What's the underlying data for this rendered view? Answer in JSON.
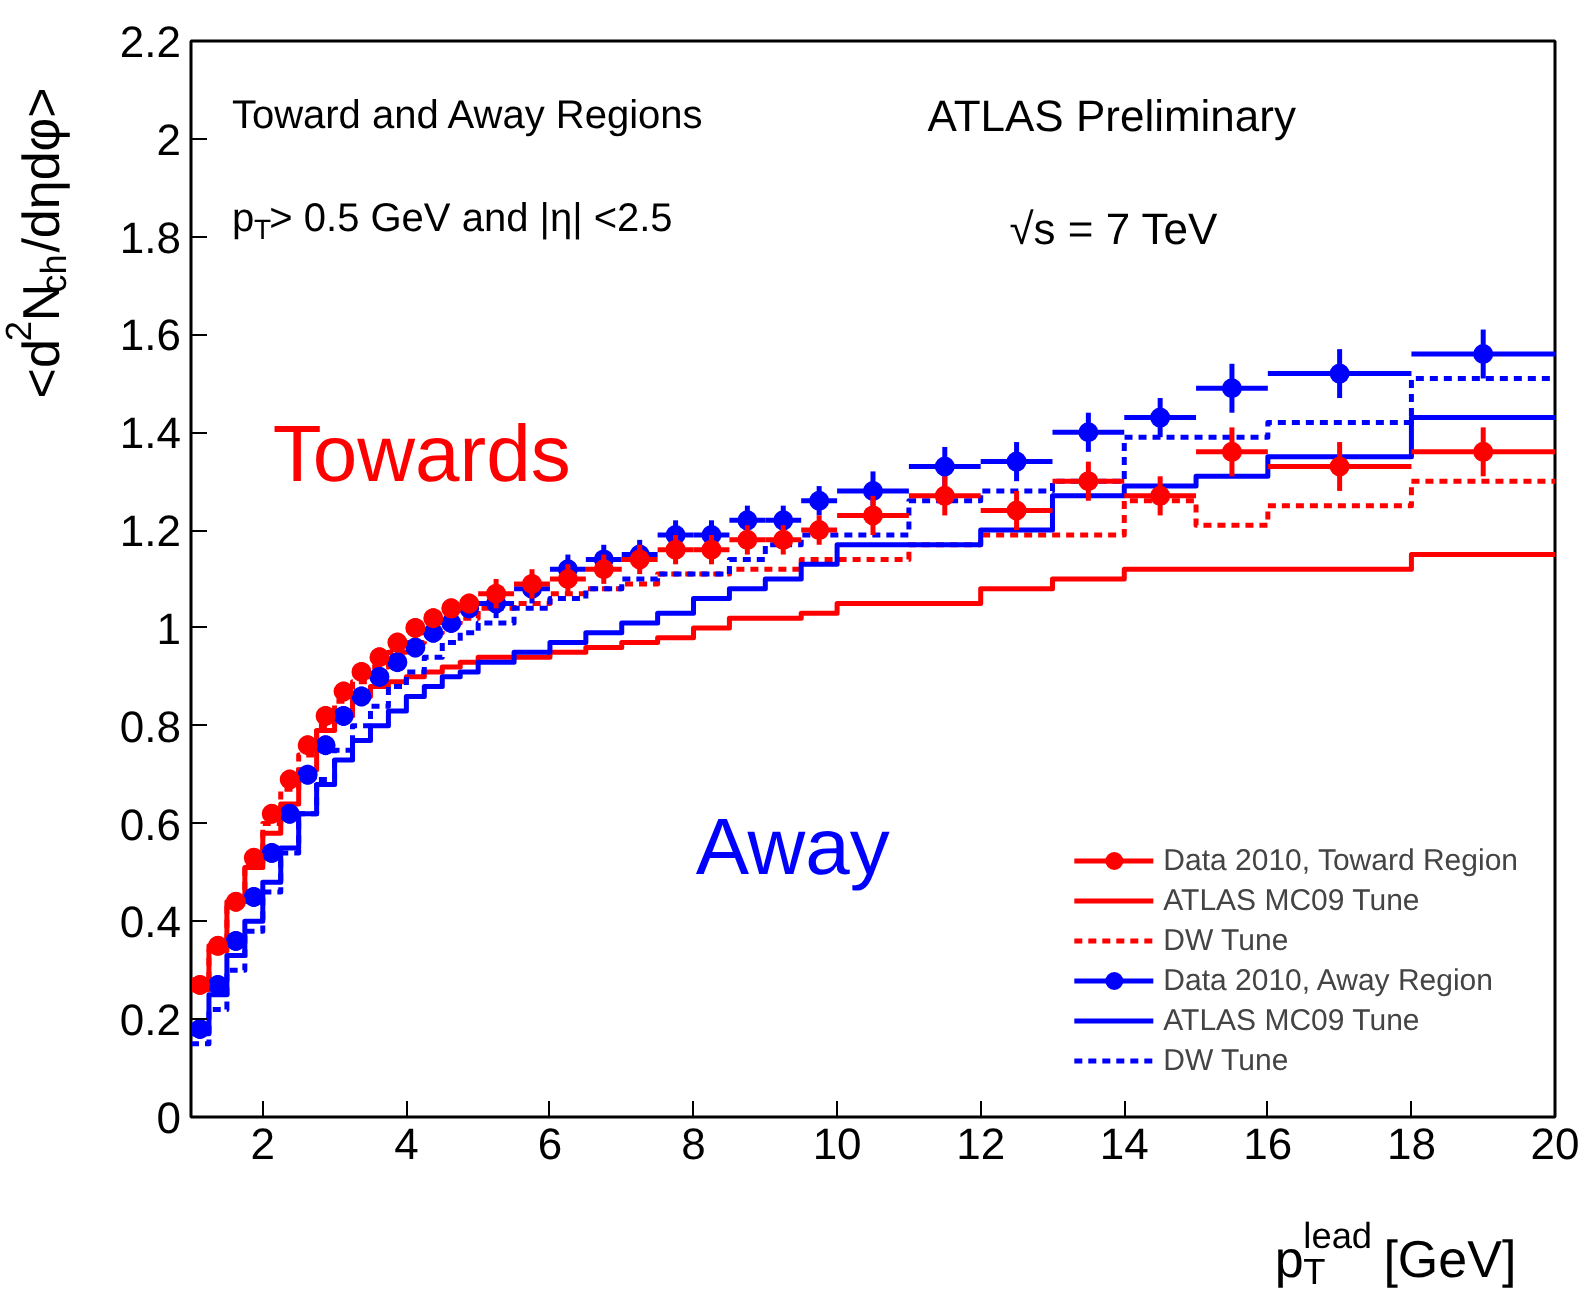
{
  "chart_data": {
    "type": "scatter",
    "xlabel": "p$_{T}$$^{lead}$ [GeV]",
    "ylabel": "<d$^{2}$N$_{ch}$/dηdφ>",
    "annotations": [
      "Toward and Away Regions",
      "p$_{T}$> 0.5  GeV and |η| <2.5",
      "ATLAS Preliminary",
      "√s = 7 TeV",
      "Towards",
      "Away"
    ],
    "xlim": [
      1,
      20
    ],
    "ylim": [
      0,
      2.2
    ],
    "xticks": [
      2,
      4,
      6,
      8,
      10,
      12,
      14,
      16,
      18,
      20
    ],
    "yticks": [
      0,
      0.2,
      0.4,
      0.6,
      0.8,
      1,
      1.2,
      1.4,
      1.6,
      1.8,
      2,
      2.2
    ],
    "grid": false,
    "legend": "bottom right",
    "x": [
      1.125,
      1.375,
      1.625,
      1.875,
      2.125,
      2.375,
      2.625,
      2.875,
      3.125,
      3.375,
      3.625,
      3.875,
      4.125,
      4.375,
      4.625,
      4.875,
      5.25,
      5.75,
      6.25,
      6.75,
      7.25,
      7.75,
      8.25,
      8.75,
      9.25,
      9.75,
      10.5,
      11.5,
      12.5,
      13.5,
      14.5,
      15.5,
      17,
      19
    ],
    "series": [
      {
        "name": "Data 2010, Toward Region",
        "marker": "circle",
        "color": "#ff0000",
        "values": [
          0.27,
          0.35,
          0.44,
          0.53,
          0.62,
          0.69,
          0.76,
          0.82,
          0.87,
          0.91,
          0.94,
          0.97,
          1.0,
          1.02,
          1.04,
          1.05,
          1.07,
          1.09,
          1.1,
          1.12,
          1.14,
          1.16,
          1.16,
          1.18,
          1.18,
          1.2,
          1.23,
          1.27,
          1.24,
          1.3,
          1.27,
          1.36,
          1.33,
          1.36
        ],
        "errors": [
          0.02,
          0.02,
          0.02,
          0.02,
          0.02,
          0.02,
          0.02,
          0.02,
          0.02,
          0.02,
          0.02,
          0.02,
          0.02,
          0.02,
          0.02,
          0.02,
          0.03,
          0.03,
          0.03,
          0.03,
          0.03,
          0.03,
          0.03,
          0.03,
          0.03,
          0.03,
          0.04,
          0.04,
          0.04,
          0.04,
          0.04,
          0.05,
          0.05,
          0.05
        ],
        "xerrors": [
          0.125,
          0.125,
          0.125,
          0.125,
          0.125,
          0.125,
          0.125,
          0.125,
          0.125,
          0.125,
          0.125,
          0.125,
          0.125,
          0.125,
          0.125,
          0.125,
          0.25,
          0.25,
          0.25,
          0.25,
          0.25,
          0.25,
          0.25,
          0.25,
          0.25,
          0.25,
          0.5,
          0.5,
          0.5,
          0.5,
          0.5,
          0.5,
          1,
          1
        ]
      },
      {
        "name": "ATLAS MC09 Tune",
        "type": "step",
        "marker": "none",
        "line_style": "solid",
        "color": "#ff0000",
        "x": [
          1,
          1.25,
          1.5,
          1.75,
          2,
          2.25,
          2.5,
          2.75,
          3,
          3.25,
          3.5,
          3.75,
          4,
          4.25,
          4.5,
          4.75,
          5,
          5.5,
          6,
          6.5,
          7,
          7.5,
          8,
          8.5,
          9,
          9.5,
          10,
          11,
          12,
          13,
          14,
          15,
          16,
          18,
          20
        ],
        "values": [
          0.28,
          0.35,
          0.44,
          0.51,
          0.58,
          0.64,
          0.71,
          0.79,
          0.82,
          0.86,
          0.88,
          0.89,
          0.9,
          0.91,
          0.92,
          0.93,
          0.94,
          0.94,
          0.95,
          0.96,
          0.97,
          0.98,
          1.0,
          1.02,
          1.02,
          1.03,
          1.05,
          1.05,
          1.08,
          1.1,
          1.12,
          1.12,
          1.12,
          1.15,
          1.15
        ]
      },
      {
        "name": "DW Tune",
        "type": "step",
        "marker": "none",
        "line_style": "dashed",
        "color": "#ff0000",
        "x": [
          1,
          1.25,
          1.5,
          1.75,
          2,
          2.25,
          2.5,
          2.75,
          3,
          3.25,
          3.5,
          3.75,
          4,
          4.25,
          4.5,
          4.75,
          5,
          5.5,
          6,
          6.5,
          7,
          7.5,
          8,
          8.5,
          9,
          9.5,
          10,
          11,
          12,
          13,
          14,
          15,
          16,
          18,
          20
        ],
        "values": [
          0.26,
          0.34,
          0.43,
          0.52,
          0.6,
          0.67,
          0.74,
          0.8,
          0.85,
          0.89,
          0.92,
          0.95,
          0.97,
          0.99,
          1.01,
          1.02,
          1.04,
          1.05,
          1.07,
          1.08,
          1.09,
          1.11,
          1.11,
          1.12,
          1.12,
          1.14,
          1.14,
          1.17,
          1.19,
          1.19,
          1.26,
          1.21,
          1.25,
          1.3,
          1.3
        ]
      },
      {
        "name": "Data 2010, Away Region",
        "marker": "circle",
        "color": "#0000ff",
        "values": [
          0.18,
          0.27,
          0.36,
          0.45,
          0.54,
          0.62,
          0.7,
          0.76,
          0.82,
          0.86,
          0.9,
          0.93,
          0.96,
          0.99,
          1.01,
          1.04,
          1.05,
          1.08,
          1.12,
          1.14,
          1.15,
          1.19,
          1.19,
          1.22,
          1.22,
          1.26,
          1.28,
          1.33,
          1.34,
          1.4,
          1.43,
          1.49,
          1.52,
          1.56
        ],
        "errors": [
          0.02,
          0.02,
          0.02,
          0.02,
          0.02,
          0.02,
          0.02,
          0.02,
          0.02,
          0.02,
          0.02,
          0.02,
          0.02,
          0.02,
          0.02,
          0.02,
          0.03,
          0.03,
          0.03,
          0.03,
          0.03,
          0.03,
          0.03,
          0.03,
          0.03,
          0.03,
          0.04,
          0.04,
          0.04,
          0.04,
          0.04,
          0.05,
          0.05,
          0.05
        ],
        "xerrors": [
          0.125,
          0.125,
          0.125,
          0.125,
          0.125,
          0.125,
          0.125,
          0.125,
          0.125,
          0.125,
          0.125,
          0.125,
          0.125,
          0.125,
          0.125,
          0.125,
          0.25,
          0.25,
          0.25,
          0.25,
          0.25,
          0.25,
          0.25,
          0.25,
          0.25,
          0.25,
          0.5,
          0.5,
          0.5,
          0.5,
          0.5,
          0.5,
          1,
          1
        ]
      },
      {
        "name": "ATLAS MC09 Tune",
        "type": "step",
        "marker": "none",
        "line_style": "solid",
        "color": "#0000ff",
        "x": [
          1,
          1.25,
          1.5,
          1.75,
          2,
          2.25,
          2.5,
          2.75,
          3,
          3.25,
          3.5,
          3.75,
          4,
          4.25,
          4.5,
          4.75,
          5,
          5.5,
          6,
          6.5,
          7,
          7.5,
          8,
          8.5,
          9,
          9.5,
          10,
          11,
          12,
          13,
          14,
          15,
          16,
          18,
          20
        ],
        "values": [
          0.17,
          0.25,
          0.33,
          0.4,
          0.48,
          0.55,
          0.62,
          0.68,
          0.73,
          0.77,
          0.8,
          0.83,
          0.86,
          0.88,
          0.9,
          0.91,
          0.93,
          0.95,
          0.97,
          0.99,
          1.01,
          1.03,
          1.06,
          1.08,
          1.1,
          1.13,
          1.17,
          1.17,
          1.2,
          1.27,
          1.29,
          1.31,
          1.35,
          1.43,
          1.43
        ]
      },
      {
        "name": "DW Tune",
        "type": "step",
        "marker": "none",
        "line_style": "dashed",
        "color": "#0000ff",
        "x": [
          1,
          1.25,
          1.5,
          1.75,
          2,
          2.25,
          2.5,
          2.75,
          3,
          3.25,
          3.5,
          3.75,
          4,
          4.25,
          4.5,
          4.75,
          5,
          5.5,
          6,
          6.5,
          7,
          7.5,
          8,
          8.5,
          9,
          9.5,
          10,
          11,
          12,
          13,
          14,
          15,
          16,
          18,
          20
        ],
        "values": [
          0.15,
          0.22,
          0.3,
          0.38,
          0.46,
          0.54,
          0.62,
          0.69,
          0.75,
          0.8,
          0.84,
          0.88,
          0.91,
          0.94,
          0.97,
          0.99,
          1.01,
          1.04,
          1.06,
          1.08,
          1.1,
          1.11,
          1.11,
          1.14,
          1.17,
          1.19,
          1.19,
          1.26,
          1.28,
          1.3,
          1.39,
          1.39,
          1.42,
          1.51,
          1.51
        ]
      }
    ]
  }
}
